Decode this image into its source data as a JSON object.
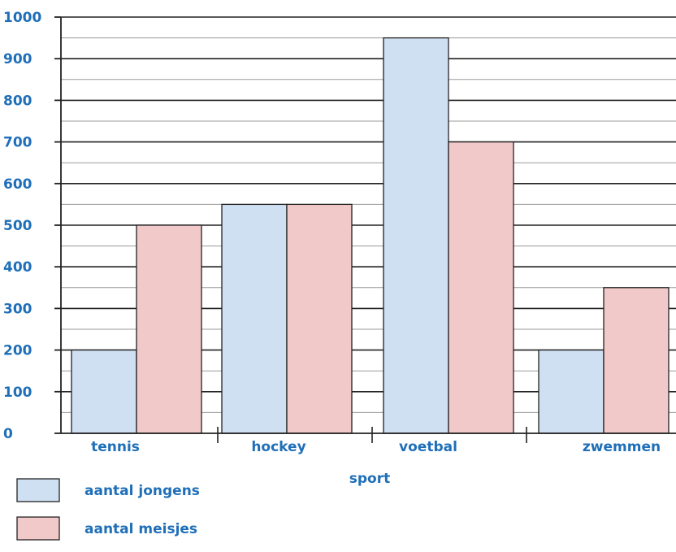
{
  "chart_data": {
    "type": "bar",
    "title": "",
    "xlabel": "sport",
    "ylabel": "",
    "categories": [
      "tennis",
      "hockey",
      "voetbal",
      "zwemmen"
    ],
    "series": [
      {
        "name": "aantal jongens",
        "values": [
          200,
          550,
          950,
          200
        ],
        "color": "#cfe0f3"
      },
      {
        "name": "aantal meisjes",
        "values": [
          500,
          550,
          700,
          350
        ],
        "color": "#f2c9c9"
      }
    ],
    "ylim": [
      0,
      1000
    ],
    "yticks": [
      0,
      100,
      200,
      300,
      400,
      500,
      600,
      700,
      800,
      900,
      1000
    ],
    "grid": true,
    "legend_position": "bottom-left"
  }
}
